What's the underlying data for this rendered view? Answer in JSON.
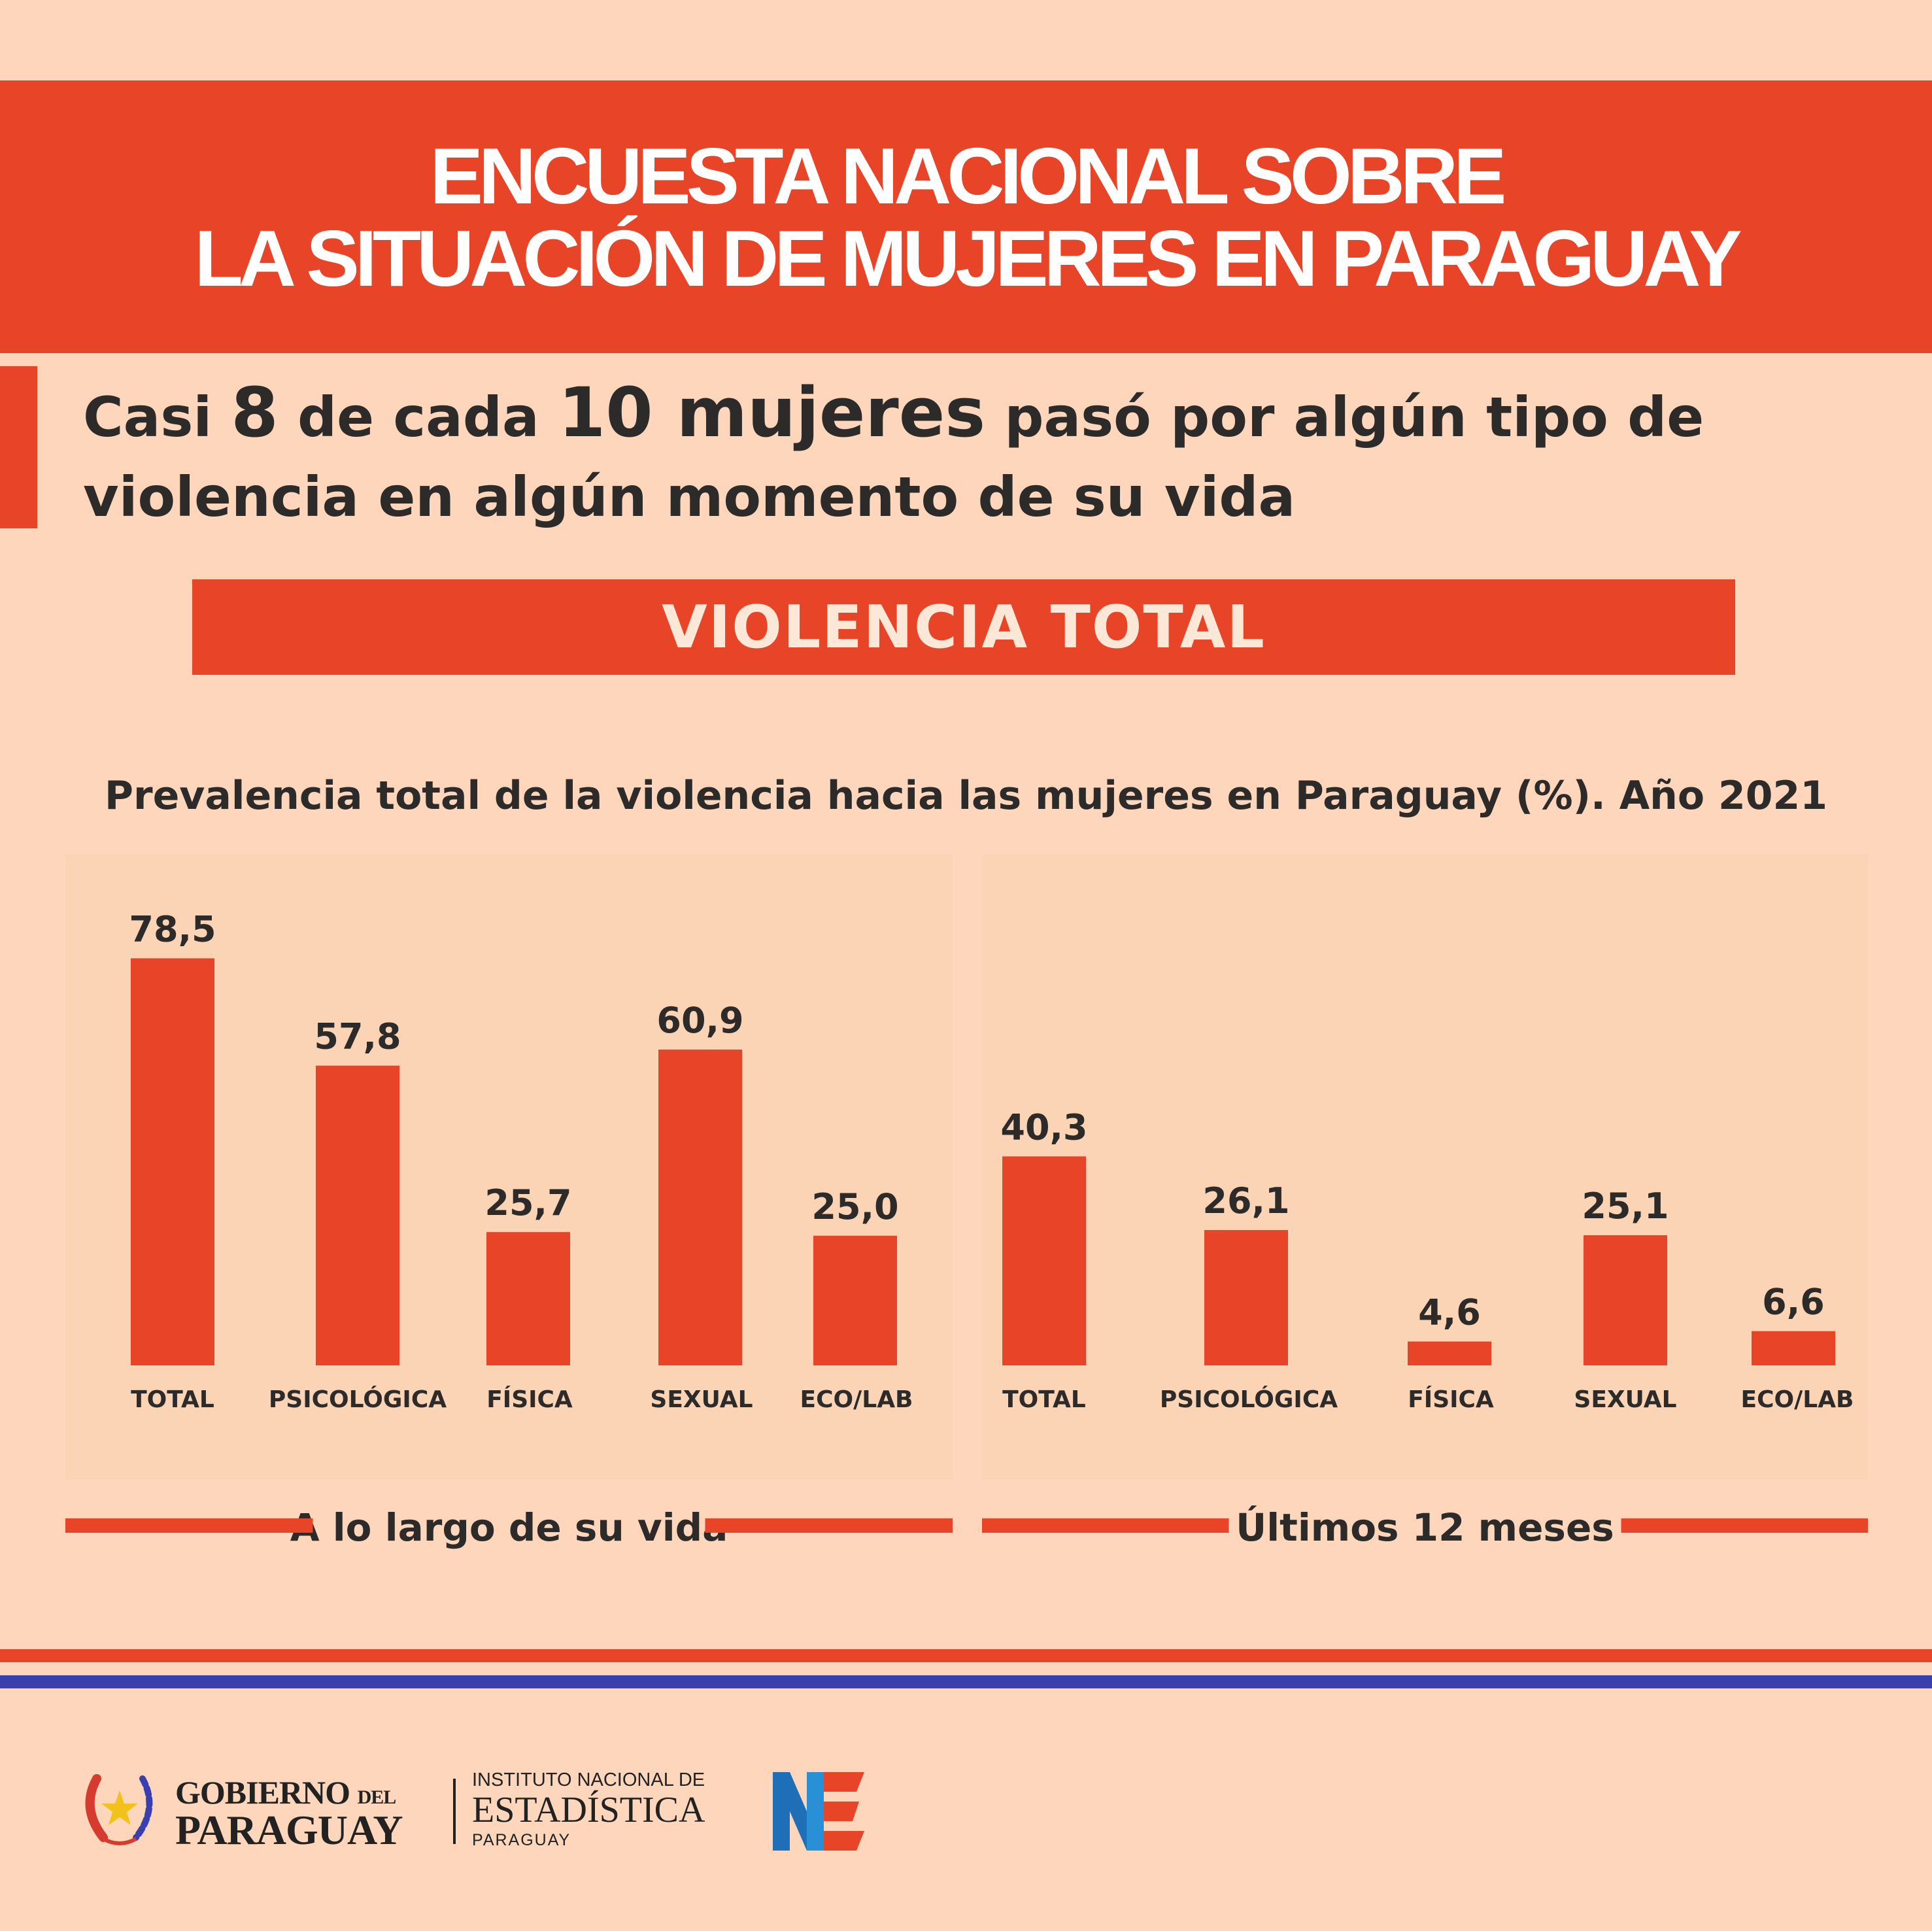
{
  "header": {
    "title_line1": "ENCUESTA NACIONAL SOBRE",
    "title_line2": "LA SITUACIÓN DE MUJERES EN PARAGUAY"
  },
  "subheading": {
    "part1": "Casi ",
    "part2": "8",
    "part3": " de cada ",
    "part4": "10 mujeres",
    "part5": " pasó por algún tipo de",
    "line2": "violencia en algún momento de su vida"
  },
  "section_title": "VIOLENCIA TOTAL",
  "colors": {
    "accent": "#e74428",
    "background": "#fdd6bb",
    "panel": "#fbd3b5",
    "text": "#2c2b2a",
    "flag_blue": "#3a3fb0"
  },
  "chart_data": [
    {
      "type": "bar",
      "title": "Prevalencia total de la violencia hacia las mujeres en Paraguay (%). Año 2021",
      "categories": [
        "TOTAL",
        "PSICOLÓGICA",
        "FÍSICA",
        "SEXUAL",
        "ECO/LAB"
      ],
      "values": [
        78.5,
        57.8,
        25.7,
        60.9,
        25.0
      ],
      "value_labels": [
        "78,5",
        "57,8",
        "25,7",
        "60,9",
        "25,0"
      ],
      "caption": "A lo largo de su vida",
      "xlabel": "",
      "ylabel": "",
      "ylim": [
        0,
        100
      ],
      "grid": false
    },
    {
      "type": "bar",
      "categories": [
        "TOTAL",
        "PSICOLÓGICA",
        "FÍSICA",
        "SEXUAL",
        "ECO/LAB"
      ],
      "values": [
        40.3,
        26.1,
        4.6,
        25.1,
        6.6
      ],
      "value_labels": [
        "40,3",
        "26,1",
        "4,6",
        "25,1",
        "6,6"
      ],
      "caption": "Últimos 12 meses",
      "xlabel": "",
      "ylabel": "",
      "ylim": [
        0,
        100
      ],
      "grid": false
    }
  ],
  "footer": {
    "gov_line1": "GOBIERNO",
    "gov_del": "DEL",
    "gov_line2": "PARAGUAY",
    "ine_line1": "INSTITUTO NACIONAL DE",
    "ine_line2": "ESTADÍSTICA",
    "ine_line3": "PARAGUAY",
    "ine_logo_icon": "ine-logo-icon",
    "coat_of_arms_icon": "coat-of-arms-icon"
  }
}
